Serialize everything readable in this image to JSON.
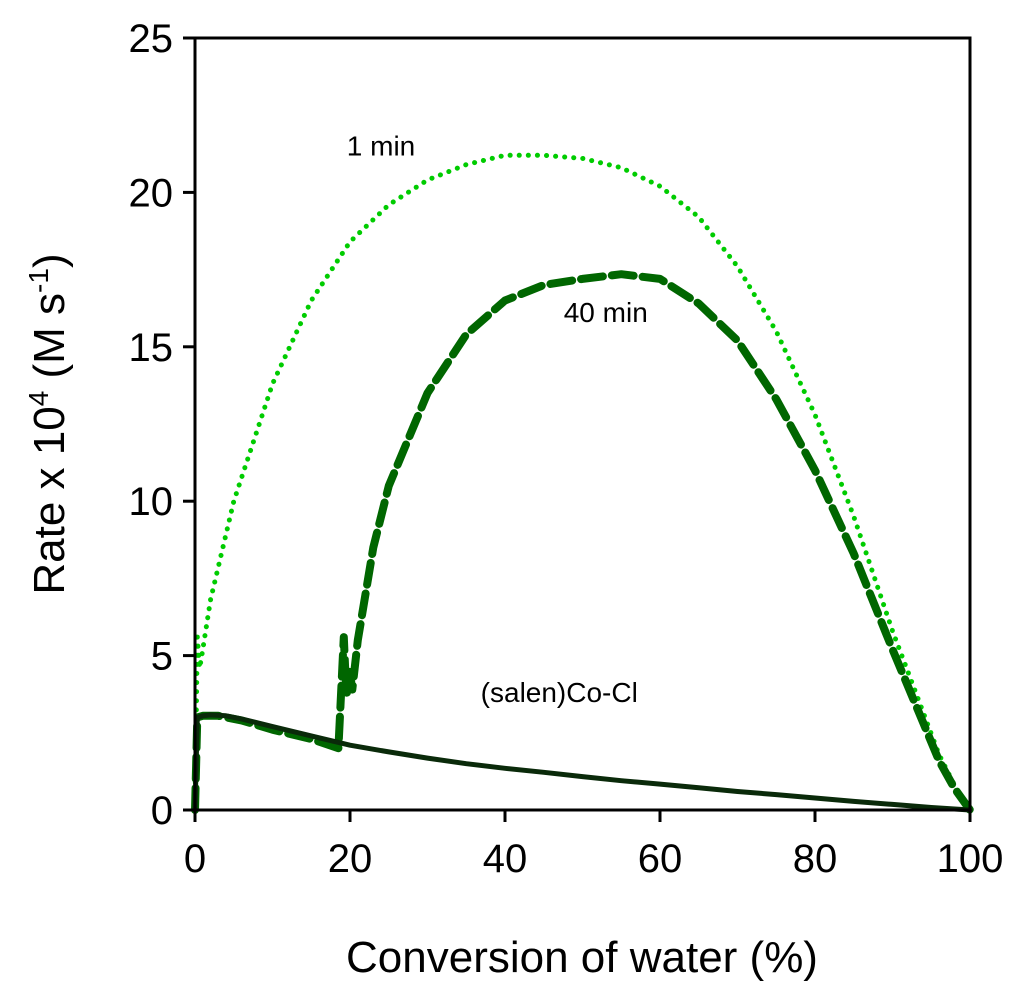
{
  "chart_data": {
    "type": "line",
    "xlabel": "Conversion of water (%)",
    "ylabel_main": "Rate x 10",
    "ylabel_exp": "4",
    "ylabel_unit_open": " (M s",
    "ylabel_unit_exp": "-1",
    "ylabel_unit_close": ")",
    "xlim": [
      0,
      100
    ],
    "ylim": [
      0,
      25
    ],
    "xticks": [
      0,
      20,
      40,
      60,
      80,
      100
    ],
    "yticks": [
      0,
      5,
      10,
      15,
      20,
      25
    ],
    "grid": false,
    "legend": "none",
    "annotations": [
      {
        "text": "1 min",
        "x": 24,
        "y": 21.2
      },
      {
        "text": "40 min",
        "x": 53,
        "y": 15.8
      },
      {
        "text": "(salen)Co-Cl",
        "x": 47,
        "y": 3.5
      }
    ],
    "series": [
      {
        "color": "#00cc00",
        "style": "dotted",
        "x": [
          0,
          0.3,
          0.6,
          1,
          2,
          5,
          10,
          15,
          20,
          25,
          30,
          35,
          40,
          45,
          50,
          55,
          60,
          65,
          70,
          75,
          80,
          85,
          90,
          93,
          96,
          98,
          100
        ],
        "y": [
          0,
          5.6,
          4.6,
          5.2,
          6.8,
          10,
          13.8,
          16.5,
          18.4,
          19.6,
          20.4,
          20.9,
          21.2,
          21.2,
          21.1,
          20.8,
          20.2,
          19.2,
          17.6,
          15.5,
          12.8,
          9.5,
          5.8,
          3.8,
          1.8,
          0.8,
          0
        ]
      },
      {
        "color": "#006600",
        "style": "dashed",
        "x": [
          0,
          0.3,
          1,
          3,
          6,
          10,
          15,
          18.5,
          19,
          19.2,
          19.4,
          19.6,
          19.9,
          20.3,
          21,
          23,
          25,
          30,
          35,
          40,
          45,
          50,
          55,
          60,
          65,
          70,
          75,
          80,
          85,
          90,
          93,
          96,
          98,
          100
        ],
        "y": [
          0,
          3,
          3.05,
          3.05,
          2.9,
          2.6,
          2.3,
          2,
          4.6,
          5.6,
          4.4,
          3.8,
          4.6,
          3.9,
          5.5,
          8.5,
          10.5,
          13.5,
          15.4,
          16.5,
          17,
          17.2,
          17.35,
          17.2,
          16.4,
          15.2,
          13.3,
          11,
          8.3,
          5.2,
          3.4,
          1.6,
          0.7,
          0
        ]
      },
      {
        "color": "#0a2a0a",
        "style": "solid",
        "x": [
          0,
          0.3,
          1,
          2,
          4,
          6,
          10,
          15,
          20,
          25,
          30,
          35,
          40,
          45,
          50,
          55,
          60,
          65,
          70,
          75,
          80,
          85,
          90,
          95,
          100
        ],
        "y": [
          0,
          3,
          3.05,
          3.08,
          3.05,
          2.95,
          2.7,
          2.4,
          2.1,
          1.88,
          1.68,
          1.5,
          1.35,
          1.22,
          1.08,
          0.95,
          0.84,
          0.72,
          0.6,
          0.5,
          0.39,
          0.28,
          0.18,
          0.08,
          0
        ]
      }
    ]
  }
}
